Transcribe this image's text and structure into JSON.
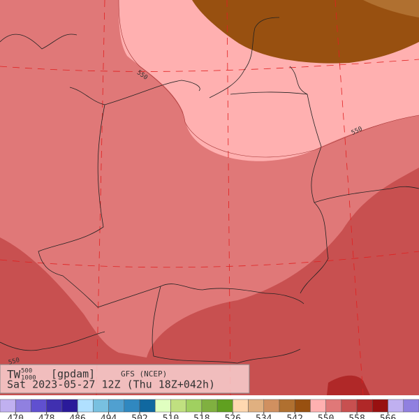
{
  "map": {
    "title": "TW",
    "title_superscript": "500",
    "title_subscript": "1000",
    "units": "[gpdam]",
    "model": "GFS (NCEP)",
    "valid_time": "Sat 2023-05-27 12Z (Thu 18Z+042h)",
    "contour_labels": [
      "550",
      "550",
      "550"
    ]
  },
  "colorbar": {
    "labels": [
      470,
      478,
      486,
      494,
      502,
      510,
      518,
      526,
      534,
      542,
      550,
      558,
      566
    ],
    "colors": [
      "#c0b0f0",
      "#9080e0",
      "#6050d0",
      "#4030b0",
      "#2a1a9a",
      "#b0e0ff",
      "#78c0e0",
      "#50a0d0",
      "#3088c0",
      "#1068a0",
      "#e0ffc0",
      "#c0e080",
      "#a0d060",
      "#80b040",
      "#60a020",
      "#ffd8b0",
      "#e0b080",
      "#d09060",
      "#b07030",
      "#985010",
      "#ffb0b0",
      "#e07878",
      "#c85050",
      "#b02828",
      "#981010",
      "#c0b0f0",
      "#9080e0"
    ]
  }
}
